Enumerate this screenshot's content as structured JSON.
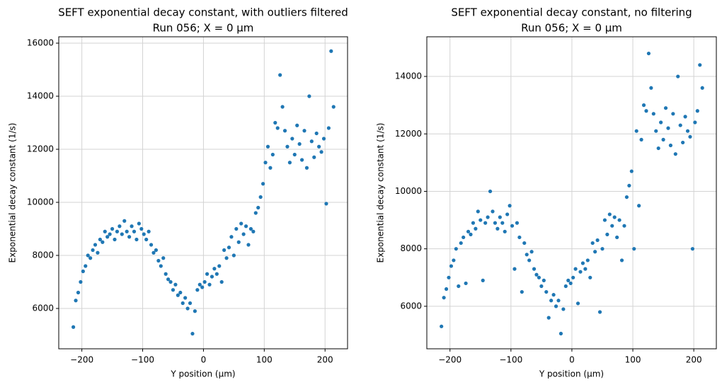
{
  "chart_data": [
    {
      "type": "scatter",
      "title": "SEFT exponential decay constant, with outliers filtered",
      "subtitle": "Run 056; X = 0 µm",
      "x_label": "Y position (µm)",
      "y_label": "Exponential decay constant (1/s)",
      "color": "#1f77b4",
      "grid": true,
      "xlim": [
        -238,
        237
      ],
      "ylim": [
        4480,
        16240
      ],
      "xticks": [
        {
          "value": -200,
          "label": "−200"
        },
        {
          "value": -100,
          "label": "−100"
        },
        0,
        100,
        200
      ],
      "yticks": [
        6000,
        8000,
        10000,
        12000,
        14000,
        16000
      ],
      "x": [
        -214,
        -210,
        -206,
        -202,
        -198,
        -194,
        -190,
        -186,
        -182,
        -178,
        -174,
        -170,
        -166,
        -162,
        -158,
        -154,
        -150,
        -146,
        -142,
        -138,
        -134,
        -130,
        -126,
        -122,
        -118,
        -114,
        -110,
        -106,
        -102,
        -98,
        -94,
        -90,
        -86,
        -82,
        -78,
        -74,
        -70,
        -66,
        -62,
        -58,
        -54,
        -50,
        -46,
        -42,
        -38,
        -34,
        -30,
        -26,
        -22,
        -18,
        -14,
        -10,
        -6,
        -2,
        2,
        6,
        10,
        14,
        18,
        22,
        26,
        30,
        34,
        38,
        42,
        46,
        50,
        54,
        58,
        62,
        66,
        70,
        74,
        78,
        82,
        86,
        90,
        94,
        98,
        102,
        106,
        110,
        114,
        118,
        122,
        126,
        130,
        134,
        138,
        142,
        146,
        150,
        154,
        158,
        162,
        166,
        170,
        174,
        178,
        182,
        186,
        190,
        194,
        198,
        202,
        206,
        210,
        214
      ],
      "values": [
        5300,
        6300,
        6600,
        7000,
        7400,
        7600,
        8000,
        7900,
        8200,
        8400,
        8100,
        8600,
        8500,
        8900,
        8700,
        8800,
        9000,
        8600,
        8900,
        9100,
        8800,
        9300,
        8900,
        8700,
        9100,
        8900,
        8600,
        9200,
        9000,
        8800,
        8600,
        8900,
        8400,
        8100,
        8200,
        7800,
        7600,
        7900,
        7300,
        7100,
        7000,
        6700,
        6900,
        6500,
        6600,
        6200,
        6400,
        6000,
        6200,
        5050,
        5900,
        6700,
        6900,
        6800,
        7000,
        7300,
        6900,
        7200,
        7500,
        7300,
        7600,
        7000,
        8200,
        7900,
        8300,
        8700,
        8000,
        9000,
        8500,
        9200,
        8800,
        9100,
        8400,
        9000,
        8900,
        9600,
        9800,
        10200,
        10700,
        11500,
        12100,
        11300,
        11800,
        13000,
        12800,
        14800,
        13600,
        12700,
        12100,
        11500,
        12400,
        11800,
        12900,
        12200,
        11600,
        12700,
        11300,
        14000,
        12300,
        11700,
        12600,
        12100,
        11900,
        12400,
        9950,
        12800,
        15700,
        13600
      ]
    },
    {
      "type": "scatter",
      "title": "SEFT exponential decay constant, no filtering",
      "subtitle": "Run 056; X = 0 µm",
      "x_label": "Y position (µm)",
      "y_label": "Exponential decay constant (1/s)",
      "color": "#1f77b4",
      "grid": true,
      "xlim": [
        -238,
        237
      ],
      "ylim": [
        4520,
        15380
      ],
      "xticks": [
        {
          "value": -200,
          "label": "−200"
        },
        {
          "value": -100,
          "label": "−100"
        },
        0,
        100,
        200
      ],
      "yticks": [
        6000,
        8000,
        10000,
        12000,
        14000
      ],
      "x": [
        -214,
        -210,
        -206,
        -202,
        -198,
        -194,
        -190,
        -186,
        -182,
        -178,
        -174,
        -170,
        -166,
        -162,
        -158,
        -154,
        -150,
        -146,
        -142,
        -138,
        -134,
        -130,
        -126,
        -122,
        -118,
        -114,
        -110,
        -106,
        -102,
        -98,
        -94,
        -90,
        -86,
        -82,
        -78,
        -74,
        -70,
        -66,
        -62,
        -58,
        -54,
        -50,
        -46,
        -42,
        -38,
        -34,
        -30,
        -26,
        -22,
        -18,
        -14,
        -10,
        -6,
        -2,
        2,
        6,
        10,
        14,
        18,
        22,
        26,
        30,
        34,
        38,
        42,
        46,
        50,
        54,
        58,
        62,
        66,
        70,
        74,
        78,
        82,
        86,
        90,
        94,
        98,
        102,
        106,
        110,
        114,
        118,
        122,
        126,
        130,
        134,
        138,
        142,
        146,
        150,
        154,
        158,
        162,
        166,
        170,
        174,
        178,
        182,
        186,
        190,
        194,
        198,
        202,
        206,
        210,
        214
      ],
      "values": [
        5300,
        6300,
        6600,
        7000,
        7400,
        7600,
        8000,
        6700,
        8200,
        8400,
        6800,
        8600,
        8500,
        8900,
        8700,
        9300,
        9000,
        6900,
        8900,
        9100,
        10000,
        9300,
        8900,
        8700,
        9100,
        8900,
        8600,
        9200,
        9500,
        8800,
        7300,
        8900,
        8400,
        6500,
        8200,
        7800,
        7600,
        7900,
        7300,
        7100,
        7000,
        6700,
        6900,
        6500,
        5600,
        6200,
        6400,
        6000,
        6200,
        5050,
        5900,
        6700,
        6900,
        6800,
        7000,
        7300,
        6100,
        7200,
        7500,
        7300,
        7600,
        7000,
        8200,
        7900,
        8300,
        5800,
        8000,
        9000,
        8500,
        9200,
        8800,
        9100,
        8400,
        9000,
        7600,
        8800,
        9800,
        10200,
        10700,
        8000,
        12100,
        9500,
        11800,
        13000,
        12800,
        14800,
        13600,
        12700,
        12100,
        11500,
        12400,
        11800,
        12900,
        12200,
        11600,
        12700,
        11300,
        14000,
        12300,
        11700,
        12600,
        12100,
        11900,
        8000,
        12400,
        12800,
        14400,
        13600
      ]
    }
  ]
}
